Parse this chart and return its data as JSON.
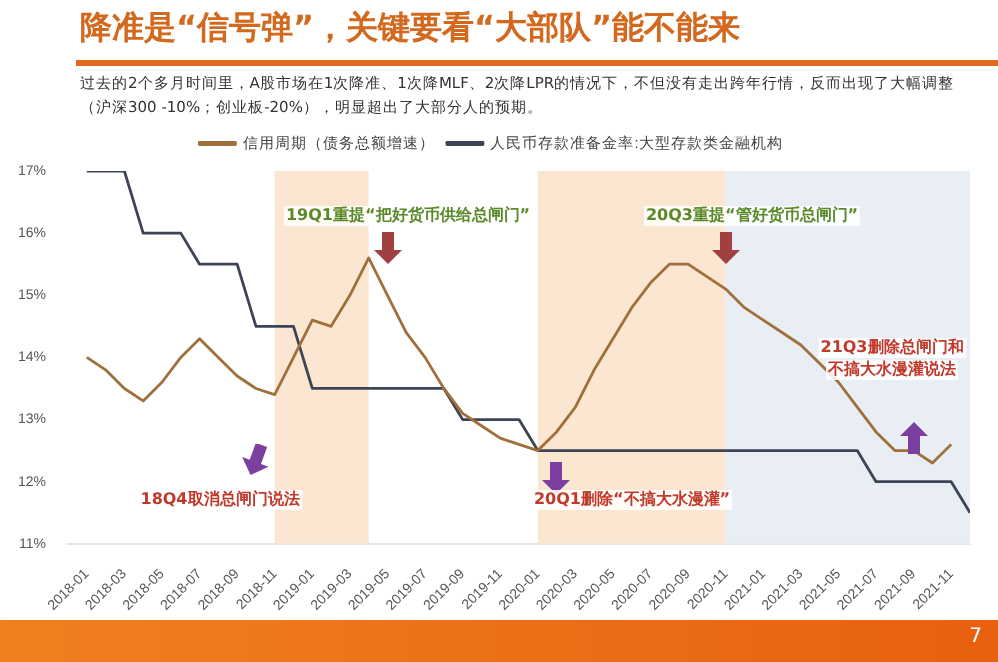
{
  "chart_data": {
    "type": "line",
    "title": "降准是“信号弹”，关键要看“大部队”能不能来",
    "subtitle": "过去的2个多月时间里，A股市场在1次降准、1次降MLF、2次降LPR的情况下，不但没有走出跨年行情，反而出现了大幅调整（沪深300 -10%；创业板-20%），明显超出了大部分人的预期。",
    "x": [
      "2018-01",
      "2018-02",
      "2018-03",
      "2018-04",
      "2018-05",
      "2018-06",
      "2018-07",
      "2018-08",
      "2018-09",
      "2018-10",
      "2018-11",
      "2018-12",
      "2019-01",
      "2019-02",
      "2019-03",
      "2019-04",
      "2019-05",
      "2019-06",
      "2019-07",
      "2019-08",
      "2019-09",
      "2019-10",
      "2019-11",
      "2019-12",
      "2020-01",
      "2020-02",
      "2020-03",
      "2020-04",
      "2020-05",
      "2020-06",
      "2020-07",
      "2020-08",
      "2020-09",
      "2020-10",
      "2020-11",
      "2020-12",
      "2021-01",
      "2021-02",
      "2021-03",
      "2021-04",
      "2021-05",
      "2021-06",
      "2021-07",
      "2021-08",
      "2021-09",
      "2021-10",
      "2021-11",
      "2021-12"
    ],
    "series": [
      {
        "name": "信用周期（债务总额增速）",
        "color": "#a0703a",
        "values": [
          14.0,
          13.8,
          13.5,
          13.3,
          13.6,
          14.0,
          14.3,
          14.0,
          13.7,
          13.5,
          13.4,
          14.0,
          14.6,
          14.5,
          15.0,
          15.6,
          15.0,
          14.4,
          14.0,
          13.5,
          13.1,
          12.9,
          12.7,
          12.6,
          12.5,
          12.8,
          13.2,
          13.8,
          14.3,
          14.8,
          15.2,
          15.5,
          15.5,
          15.3,
          15.1,
          14.8,
          14.6,
          14.4,
          14.2,
          13.9,
          13.6,
          13.2,
          12.8,
          12.5,
          12.5,
          12.3,
          12.6,
          null
        ]
      },
      {
        "name": "人民币存款准备金率:大型存款类金融机构",
        "color": "#3d4455",
        "values": [
          17,
          17,
          17,
          16,
          16,
          16,
          15.5,
          15.5,
          15.5,
          14.5,
          14.5,
          14.5,
          13.5,
          13.5,
          13.5,
          13.5,
          13.5,
          13.5,
          13.5,
          13.5,
          13,
          13,
          13,
          13,
          12.5,
          12.5,
          12.5,
          12.5,
          12.5,
          12.5,
          12.5,
          12.5,
          12.5,
          12.5,
          12.5,
          12.5,
          12.5,
          12.5,
          12.5,
          12.5,
          12.5,
          12.5,
          12,
          12,
          12,
          12,
          12,
          11.5
        ]
      }
    ],
    "xlim": [
      "2017-12",
      "2021-12"
    ],
    "xticks": [
      "2018-01",
      "2018-03",
      "2018-05",
      "2018-07",
      "2018-09",
      "2018-11",
      "2019-01",
      "2019-03",
      "2019-05",
      "2019-07",
      "2019-09",
      "2019-11",
      "2020-01",
      "2020-03",
      "2020-05",
      "2020-07",
      "2020-09",
      "2020-11",
      "2021-01",
      "2021-03",
      "2021-05",
      "2021-07",
      "2021-09",
      "2021-11"
    ],
    "ylim": [
      11,
      17
    ],
    "yticks": [
      {
        "value": 11,
        "label": "11%"
      },
      {
        "value": 12,
        "label": "12%"
      },
      {
        "value": 13,
        "label": "13%"
      },
      {
        "value": 14,
        "label": "14%"
      },
      {
        "value": 15,
        "label": "15%"
      },
      {
        "value": 16,
        "label": "16%"
      },
      {
        "value": 17,
        "label": "17%"
      }
    ],
    "bands": [
      {
        "axis": "x",
        "from": "2018-11",
        "to": "2019-04",
        "color": "#fbe6d2"
      },
      {
        "axis": "x",
        "from": "2020-01",
        "to": "2020-11",
        "color": "#fbe6d2"
      },
      {
        "axis": "x",
        "from": "2020-11",
        "to": "2021-12",
        "color": "#e9eef5"
      }
    ],
    "annotations": [
      "19Q1重提“把好货币供给总闸门”",
      "20Q3重提“管好货币总闸门”",
      "18Q4取消总闸门说法",
      "20Q1删除“不搞大水漫灌”",
      "21Q3删除总闸门和",
      "不搞大水漫灌说法",
      "7"
    ],
    "legend": "top",
    "grid": false
  }
}
